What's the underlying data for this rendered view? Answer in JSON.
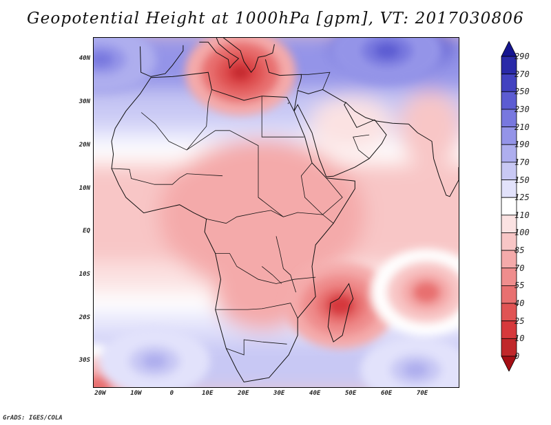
{
  "title": "Geopotential Height at 1000hPa [gpm], VT: 2017030806",
  "footer": "GrADS: IGES/COLA",
  "map": {
    "lat_range": [
      -36,
      45
    ],
    "lon_range": [
      -22,
      80
    ],
    "lat_ticks": [
      {
        "value": 40,
        "label": "40N"
      },
      {
        "value": 30,
        "label": "30N"
      },
      {
        "value": 20,
        "label": "20N"
      },
      {
        "value": 10,
        "label": "10N"
      },
      {
        "value": 0,
        "label": "EQ"
      },
      {
        "value": -10,
        "label": "10S"
      },
      {
        "value": -20,
        "label": "20S"
      },
      {
        "value": -30,
        "label": "30S"
      }
    ],
    "lon_ticks": [
      {
        "value": -20,
        "label": "20W"
      },
      {
        "value": -10,
        "label": "10W"
      },
      {
        "value": 0,
        "label": "0"
      },
      {
        "value": 10,
        "label": "10E"
      },
      {
        "value": 20,
        "label": "20E"
      },
      {
        "value": 30,
        "label": "30E"
      },
      {
        "value": 40,
        "label": "40E"
      },
      {
        "value": 50,
        "label": "50E"
      },
      {
        "value": 60,
        "label": "60E"
      },
      {
        "value": 70,
        "label": "70E"
      }
    ]
  },
  "colorbar": {
    "levels": [
      "0",
      "10",
      "25",
      "40",
      "55",
      "70",
      "85",
      "100",
      "110",
      "125",
      "150",
      "170",
      "190",
      "210",
      "230",
      "250",
      "270",
      "290"
    ],
    "colors": [
      "#a50f15",
      "#c0282b",
      "#d6393c",
      "#e05454",
      "#e87070",
      "#ef8d8d",
      "#f4aaaa",
      "#f8c6c6",
      "#fbe2e2",
      "#ffffff",
      "#e2e2fb",
      "#c8c8f4",
      "#aeaeee",
      "#9494e8",
      "#7878df",
      "#5c5cd2",
      "#4242c0",
      "#2a2aa8",
      "#151590"
    ]
  },
  "field_features": [
    {
      "name": "low-mediterranean",
      "lon": 19,
      "lat": 37,
      "value": 0
    },
    {
      "name": "low-madagascar",
      "lon": 47,
      "lat": -17,
      "value": 10
    },
    {
      "name": "low-indian-ocean",
      "lon": 71,
      "lat": -14,
      "value": 40
    },
    {
      "name": "low-southwest-corner",
      "lon": -21,
      "lat": -36,
      "value": 40
    },
    {
      "name": "high-south-atlantic",
      "lon": -5,
      "lat": -30,
      "value": 170
    },
    {
      "name": "high-south-indian",
      "lon": 68,
      "lat": -32,
      "value": 170
    },
    {
      "name": "high-north-atlantic",
      "lon": -20,
      "lat": 40,
      "value": 210
    },
    {
      "name": "high-central-asia",
      "lon": 60,
      "lat": 42,
      "value": 230
    }
  ]
}
